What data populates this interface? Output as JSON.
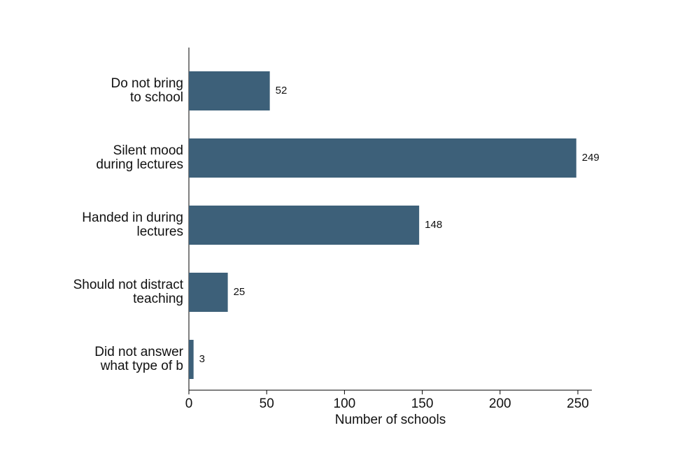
{
  "chart_data": {
    "type": "bar",
    "orientation": "horizontal",
    "categories": [
      [
        "Do not bring",
        "to school"
      ],
      [
        "Silent mood",
        "during lectures"
      ],
      [
        "Handed in during",
        "lectures"
      ],
      [
        "Should not distract",
        "teaching"
      ],
      [
        "Did not answer",
        "what type of b"
      ]
    ],
    "values": [
      52,
      249,
      148,
      25,
      3
    ],
    "color": "#3d6079",
    "xlabel": "Number of schools",
    "xlim": [
      0,
      259
    ],
    "xticks": [
      0,
      50,
      100,
      150,
      200,
      250
    ],
    "grid": false
  }
}
